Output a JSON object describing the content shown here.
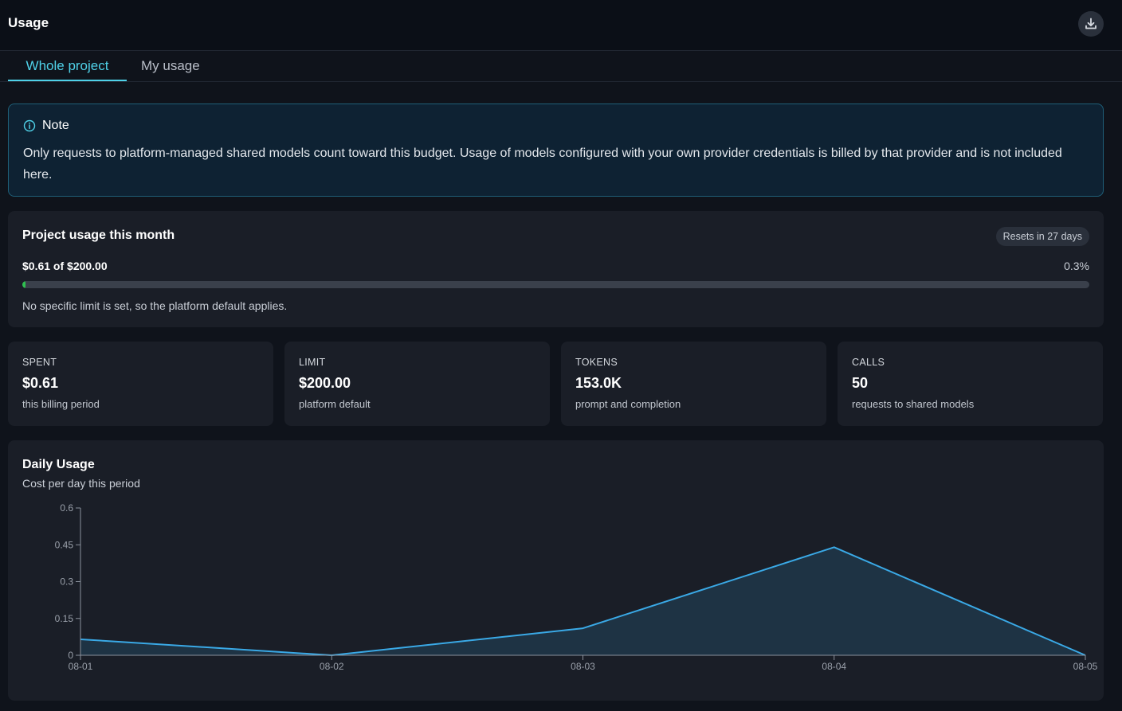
{
  "header": {
    "title": "Usage",
    "download_icon": "download-icon"
  },
  "tabs": [
    {
      "label": "Whole project",
      "active": true
    },
    {
      "label": "My usage",
      "active": false
    }
  ],
  "note": {
    "icon": "info-icon",
    "title": "Note",
    "body": "Only requests to platform-managed shared models count toward this budget. Usage of models configured with your own provider credentials is billed by that provider and is not included here."
  },
  "usage": {
    "title": "Project usage this month",
    "resets": "Resets in 27 days",
    "amount": "$0.61 of $200.00",
    "percent": "0.3%",
    "progress_fraction": 0.003,
    "footnote": "No specific limit is set, so the platform default applies."
  },
  "stats": [
    {
      "label": "SPENT",
      "value": "$0.61",
      "sub": "this billing period"
    },
    {
      "label": "LIMIT",
      "value": "$200.00",
      "sub": "platform default"
    },
    {
      "label": "TOKENS",
      "value": "153.0K",
      "sub": "prompt and completion"
    },
    {
      "label": "CALLS",
      "value": "50",
      "sub": "requests to shared models"
    }
  ],
  "daily": {
    "title": "Daily Usage",
    "subtitle": "Cost per day this period"
  },
  "colors": {
    "accent": "#4fd1e8",
    "line": "#3aa9e6",
    "area": "#1e3344",
    "progress": "#2fbf4f"
  },
  "chart_data": {
    "type": "area",
    "x": [
      "08-01",
      "08-02",
      "08-03",
      "08-04",
      "08-05"
    ],
    "y": [
      0.065,
      0.0,
      0.11,
      0.44,
      0.0
    ],
    "yticks": [
      "0",
      "0.15",
      "0.3",
      "0.45",
      "0.6"
    ],
    "ylim": [
      0,
      0.6
    ],
    "grid": false
  }
}
